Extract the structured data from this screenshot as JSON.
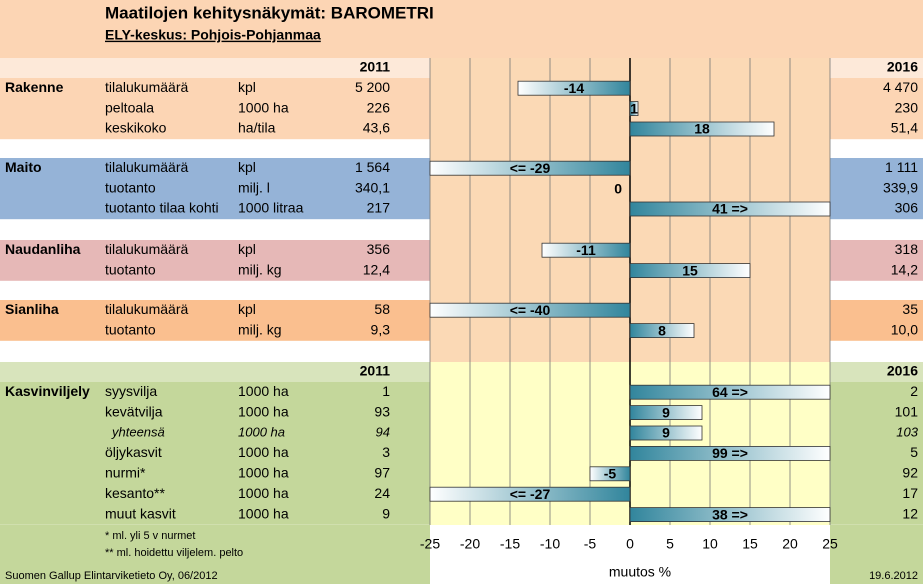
{
  "chart_data": {
    "type": "hbar",
    "title": "Maatilojen kehitysnäkymät: BAROMETRI",
    "subtitle": "ELY-keskus: Pohjois-Pohjanmaa",
    "header_top": [
      "2011",
      "2016"
    ],
    "header_crop": [
      "2011",
      "2016"
    ],
    "xlabel": "muutos %",
    "xlim": [
      -25,
      25
    ],
    "xticks": [
      -25,
      -20,
      -15,
      -10,
      -5,
      0,
      5,
      10,
      15,
      20,
      25
    ],
    "grid": true,
    "bar_color": "#31859c",
    "groups": [
      {
        "name": "Rakenne",
        "color": "#fcd5b4",
        "rows": [
          {
            "item": "tilalukumäärä",
            "unit": "kpl",
            "v2011": "5 200",
            "v2016": "4 470",
            "change": -14
          },
          {
            "item": "peltoala",
            "unit": "1000 ha",
            "v2011": "226",
            "v2016": "230",
            "change": 1
          },
          {
            "item": "keskikoko",
            "unit": "ha/tila",
            "v2011": "43,6",
            "v2016": "51,4",
            "change": 18
          }
        ]
      },
      {
        "name": "Maito",
        "color": "#95b3d7",
        "rows": [
          {
            "item": "tilalukumäärä",
            "unit": "kpl",
            "v2011": "1 564",
            "v2016": "1 111",
            "change": -29,
            "change_label": "<= -29"
          },
          {
            "item": "tuotanto",
            "unit": "milj. l",
            "v2011": "340,1",
            "v2016": "339,9",
            "change": 0
          },
          {
            "item": "tuotanto tilaa kohti",
            "unit": "1000 litraa",
            "v2011": "217",
            "v2016": "306",
            "change": 41,
            "change_label": "41 =>"
          }
        ]
      },
      {
        "name": "Naudanliha",
        "color": "#e6b8b7",
        "rows": [
          {
            "item": "tilalukumäärä",
            "unit": "kpl",
            "v2011": "356",
            "v2016": "318",
            "change": -11
          },
          {
            "item": "tuotanto",
            "unit": "milj. kg",
            "v2011": "12,4",
            "v2016": "14,2",
            "change": 15
          }
        ]
      },
      {
        "name": "Sianliha",
        "color": "#fabf8f",
        "rows": [
          {
            "item": "tilalukumäärä",
            "unit": "kpl",
            "v2011": "58",
            "v2016": "35",
            "change": -40,
            "change_label": "<= -40"
          },
          {
            "item": "tuotanto",
            "unit": "milj. kg",
            "v2011": "9,3",
            "v2016": "10,0",
            "change": 8
          }
        ]
      },
      {
        "name": "Kasvinviljely",
        "color": "#c4d79b",
        "rows": [
          {
            "item": "syysvilja",
            "unit": "1000 ha",
            "v2011": "1",
            "v2016": "2",
            "change": 64,
            "change_label": "64 =>"
          },
          {
            "item": "kevätvilja",
            "unit": "1000 ha",
            "v2011": "93",
            "v2016": "101",
            "change": 9
          },
          {
            "item": "yhteensä",
            "unit": "1000 ha",
            "v2011": "94",
            "v2016": "103",
            "change": 9,
            "italic": true
          },
          {
            "item": "öljykasvit",
            "unit": "1000 ha",
            "v2011": "3",
            "v2016": "5",
            "change": 99,
            "change_label": "99 =>"
          },
          {
            "item": "nurmi*",
            "unit": "1000 ha",
            "v2011": "97",
            "v2016": "92",
            "change": -5
          },
          {
            "item": "kesanto**",
            "unit": "1000 ha",
            "v2011": "24",
            "v2016": "17",
            "change": -27,
            "change_label": "<= -27"
          },
          {
            "item": "muut kasvit",
            "unit": "1000 ha",
            "v2011": "9",
            "v2016": "12",
            "change": 38,
            "change_label": "38 =>"
          }
        ]
      }
    ],
    "footnotes": [
      "* ml. yli 5 v nurmet",
      "** ml. hoidettu viljelem. pelto"
    ],
    "source": "Suomen Gallup Elintarviketieto Oy, 06/2012",
    "date": "19.6.2012"
  }
}
